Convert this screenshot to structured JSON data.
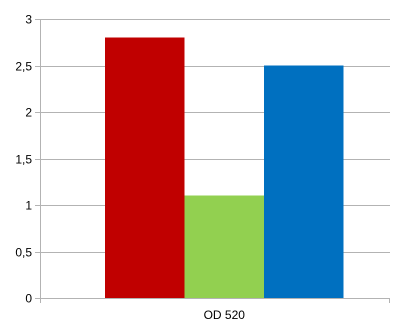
{
  "chart_data": {
    "type": "bar",
    "categories": [
      "OD 520"
    ],
    "series": [
      {
        "values": [
          2.8
        ],
        "color": "#c00000"
      },
      {
        "values": [
          1.1
        ],
        "color": "#92d050"
      },
      {
        "values": [
          2.5
        ],
        "color": "#0070c0"
      }
    ],
    "ylim": [
      0,
      3
    ],
    "y_ticks": [
      0,
      0.5,
      1,
      1.5,
      2,
      2.5,
      3
    ],
    "y_tick_labels": [
      "0",
      "0,5",
      "1",
      "1,5",
      "2",
      "2,5",
      "3"
    ],
    "grid": true,
    "legend": "none",
    "colors": {
      "gridline": "#b3b3b3",
      "axis": "#b3b3b3",
      "text": "#000000"
    }
  }
}
